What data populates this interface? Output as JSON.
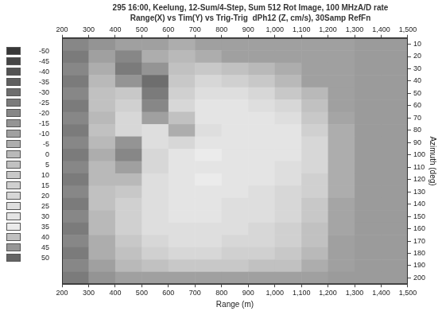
{
  "chart_data": {
    "type": "heatmap",
    "title": "295 16:00, Keelung, 12-Sum/4-Step, Sum 512 Rot Image, 100 MHzA/D rate",
    "subtitle": "Range(X) vs Tim(Y) vs Trig-Trig  dPh12 (Z, cm/s), 30Samp RefFn",
    "x_label": "Range (m)",
    "y_label": "Azimuth (deg)",
    "xlim": [
      200,
      1500
    ],
    "xticks": [
      200,
      300,
      400,
      500,
      600,
      700,
      800,
      900,
      1000,
      1100,
      1200,
      1300,
      1400,
      1500
    ],
    "ylim": [
      5,
      205
    ],
    "yticks": [
      10,
      20,
      30,
      40,
      50,
      60,
      70,
      80,
      90,
      100,
      110,
      120,
      130,
      140,
      150,
      160,
      170,
      180,
      190,
      200
    ],
    "grid": false,
    "x": [
      250,
      350,
      450,
      550,
      650,
      750,
      850,
      950,
      1050,
      1150,
      1250,
      1350,
      1450
    ],
    "y": [
      10,
      20,
      30,
      40,
      50,
      60,
      70,
      80,
      90,
      100,
      110,
      120,
      130,
      140,
      150,
      160,
      170,
      180,
      190,
      200
    ],
    "cells": [
      [
        -20,
        -15,
        -10,
        -10,
        -5,
        -10,
        -10,
        -10,
        -10,
        -10,
        -10,
        -12,
        -12
      ],
      [
        -25,
        -10,
        -20,
        -5,
        0,
        -5,
        -10,
        -10,
        -10,
        -10,
        -10,
        -12,
        -12
      ],
      [
        -20,
        -5,
        -25,
        -15,
        5,
        10,
        5,
        0,
        -5,
        -10,
        -10,
        -12,
        -12
      ],
      [
        -25,
        0,
        -15,
        -30,
        10,
        20,
        15,
        10,
        0,
        -10,
        -10,
        -12,
        -12
      ],
      [
        -20,
        5,
        10,
        -25,
        15,
        25,
        25,
        20,
        10,
        0,
        -10,
        -12,
        -12
      ],
      [
        -25,
        5,
        15,
        -20,
        20,
        30,
        30,
        25,
        20,
        5,
        -10,
        -12,
        -12
      ],
      [
        -20,
        0,
        20,
        -10,
        5,
        30,
        30,
        30,
        25,
        10,
        -8,
        -12,
        -12
      ],
      [
        -25,
        5,
        20,
        25,
        -5,
        25,
        30,
        30,
        30,
        15,
        -5,
        -12,
        -12
      ],
      [
        -20,
        0,
        -15,
        25,
        20,
        30,
        30,
        30,
        30,
        20,
        -5,
        -12,
        -12
      ],
      [
        -25,
        -5,
        -20,
        20,
        30,
        35,
        30,
        30,
        30,
        20,
        -5,
        -12,
        -12
      ],
      [
        -20,
        0,
        -10,
        20,
        30,
        30,
        30,
        30,
        25,
        20,
        -5,
        -12,
        -12
      ],
      [
        -25,
        0,
        0,
        25,
        30,
        35,
        30,
        30,
        25,
        15,
        -5,
        -12,
        -12
      ],
      [
        -20,
        5,
        10,
        25,
        30,
        30,
        30,
        25,
        20,
        15,
        -5,
        -12,
        -12
      ],
      [
        -25,
        5,
        15,
        25,
        30,
        30,
        25,
        25,
        20,
        10,
        -8,
        -12,
        -12
      ],
      [
        -20,
        0,
        15,
        25,
        30,
        30,
        25,
        25,
        20,
        10,
        -8,
        -12,
        -12
      ],
      [
        -25,
        0,
        15,
        25,
        25,
        25,
        25,
        20,
        15,
        5,
        -8,
        -12,
        -12
      ],
      [
        -20,
        -5,
        10,
        20,
        25,
        25,
        20,
        20,
        15,
        5,
        -10,
        -12,
        -12
      ],
      [
        -25,
        -5,
        5,
        15,
        20,
        20,
        15,
        15,
        10,
        0,
        -10,
        -12,
        -12
      ],
      [
        -20,
        -10,
        0,
        5,
        10,
        10,
        10,
        5,
        5,
        -5,
        -10,
        -12,
        -12
      ],
      [
        -25,
        -15,
        -10,
        -10,
        -10,
        -10,
        -10,
        -10,
        -10,
        -10,
        -12,
        -12,
        -12
      ]
    ],
    "colorbar": {
      "range": [
        -50,
        50
      ],
      "ticks": [
        -50,
        -45,
        -40,
        -35,
        -30,
        -25,
        -20,
        -15,
        -10,
        -5,
        0,
        5,
        10,
        15,
        20,
        25,
        30,
        35,
        40,
        45,
        50
      ]
    }
  }
}
